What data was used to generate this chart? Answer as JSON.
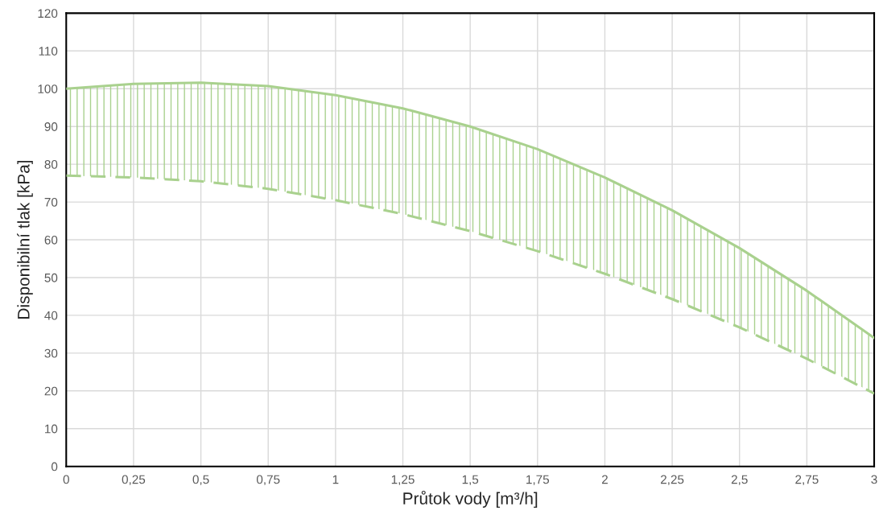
{
  "chart_data": {
    "type": "line",
    "xlabel": "Průtok vody [m³/h]",
    "ylabel": "Disponibilní tlak [kPa]",
    "x": [
      0,
      0.25,
      0.5,
      0.75,
      1,
      1.25,
      1.5,
      1.75,
      2,
      2.25,
      2.5,
      2.75,
      3
    ],
    "series": [
      {
        "color": "#a9d18e",
        "line_style": "solid",
        "values": [
          100,
          101.3,
          101.6,
          100.7,
          98.3,
          94.8,
          90,
          84,
          76.5,
          67.8,
          57.8,
          46.5,
          34
        ],
        "lower": [
          77,
          76.5,
          75.5,
          73.5,
          70.5,
          66.8,
          62.3,
          57,
          51,
          44.3,
          36.8,
          28.5,
          19.3
        ],
        "upper": [
          100,
          101.3,
          101.6,
          100.7,
          98.3,
          94.8,
          90,
          84,
          76.5,
          67.8,
          57.8,
          46.5,
          34
        ]
      },
      {
        "color": "#a9d18e",
        "line_style": "dashed",
        "values": [
          77,
          76.5,
          75.5,
          73.5,
          70.5,
          66.8,
          62.3,
          57,
          51,
          44.3,
          36.8,
          28.5,
          19.3
        ]
      }
    ],
    "xlim": [
      0,
      3
    ],
    "ylim": [
      0,
      120
    ],
    "xticks": [
      0,
      {
        "value": 0.25,
        "label": "0,25"
      },
      {
        "value": 0.5,
        "label": "0,5"
      },
      {
        "value": 0.75,
        "label": "0,75"
      },
      1,
      {
        "value": 1.25,
        "label": "1,25"
      },
      {
        "value": 1.5,
        "label": "1,5"
      },
      {
        "value": 1.75,
        "label": "1,75"
      },
      2,
      {
        "value": 2.25,
        "label": "2,25"
      },
      {
        "value": 2.5,
        "label": "2,5"
      },
      {
        "value": 2.75,
        "label": "2,75"
      },
      3
    ],
    "yticks": [
      0,
      10,
      20,
      30,
      40,
      50,
      60,
      70,
      80,
      90,
      100,
      110,
      120
    ],
    "grid": true,
    "marker": "none"
  }
}
